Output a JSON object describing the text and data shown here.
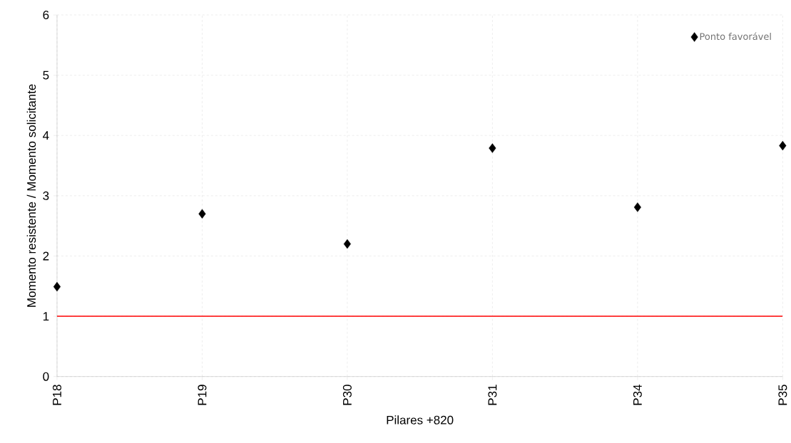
{
  "chart_data": {
    "type": "scatter",
    "xlabel": "Pilares +820",
    "ylabel": "Momento resistente / Momento solicitante",
    "categories": [
      "P18",
      "P19",
      "P30",
      "P31",
      "P34",
      "P35"
    ],
    "series": [
      {
        "name": "Ponto favorável",
        "color": "#000000",
        "values": [
          1.49,
          2.7,
          2.2,
          3.79,
          2.81,
          3.83
        ]
      }
    ],
    "ylim": [
      0,
      6
    ],
    "yticks": [
      0,
      1,
      2,
      3,
      4,
      5,
      6
    ],
    "grid": true,
    "legend": "top right",
    "marker": "diamond",
    "ref_lines": [
      {
        "axis": "y",
        "value": 1,
        "color": "#ff0000"
      }
    ]
  }
}
